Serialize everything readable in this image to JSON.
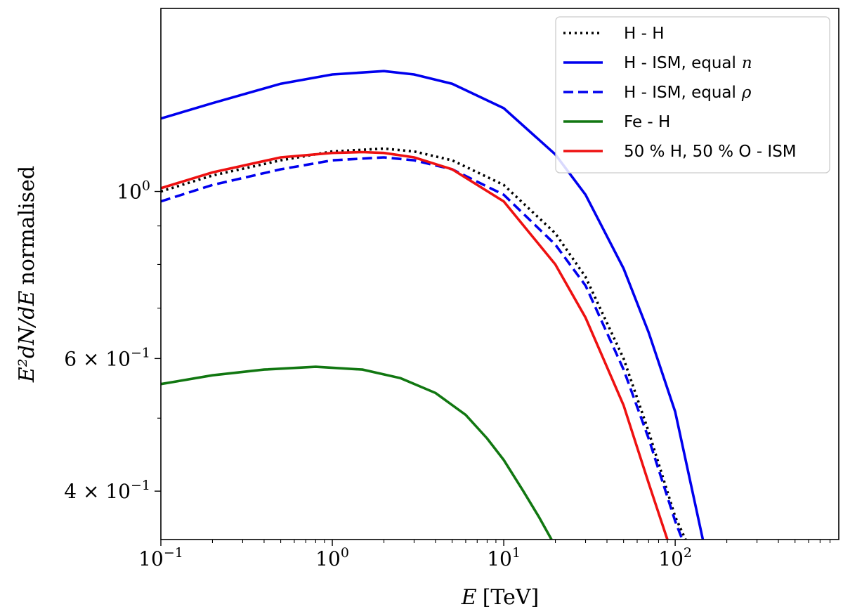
{
  "chart_data": {
    "type": "line",
    "xscale": "log",
    "yscale": "log",
    "xlim": [
      0.1,
      900
    ],
    "ylim": [
      0.345,
      1.75
    ],
    "xlabel": {
      "italic": "E",
      "rest": "[TeV]"
    },
    "ylabel": {
      "math": "E²dN/dE",
      "rest": "normalised"
    },
    "x_ticks": [
      {
        "value": 0.1,
        "base": "10",
        "exp": "−1"
      },
      {
        "value": 1,
        "base": "10",
        "exp": "0"
      },
      {
        "value": 10,
        "base": "10",
        "exp": "1"
      },
      {
        "value": 100,
        "base": "10",
        "exp": "2"
      }
    ],
    "y_ticks": [
      {
        "value": 1.0,
        "base": "10",
        "exp": "0",
        "prefix": ""
      },
      {
        "value": 0.6,
        "base": "10",
        "exp": "−1",
        "prefix": "6 × "
      },
      {
        "value": 0.4,
        "base": "10",
        "exp": "−1",
        "prefix": "4 × "
      }
    ],
    "series": [
      {
        "name": "H - H",
        "color": "#000000",
        "dash": "dotted",
        "x": [
          0.1,
          0.2,
          0.5,
          1,
          2,
          3,
          5,
          10,
          20,
          30,
          50,
          70,
          100,
          115
        ],
        "y": [
          1.0,
          1.05,
          1.1,
          1.13,
          1.14,
          1.13,
          1.1,
          1.02,
          0.88,
          0.77,
          0.6,
          0.48,
          0.37,
          0.345
        ]
      },
      {
        "name": "H - ISM, equal n",
        "color": "#0000ee",
        "dash": "solid",
        "x": [
          0.1,
          0.2,
          0.5,
          1,
          2,
          3,
          5,
          10,
          20,
          30,
          50,
          70,
          100,
          145
        ],
        "y": [
          1.25,
          1.31,
          1.39,
          1.43,
          1.445,
          1.43,
          1.39,
          1.29,
          1.12,
          0.99,
          0.79,
          0.65,
          0.51,
          0.345
        ]
      },
      {
        "name": "H - ISM, equal ρ",
        "color": "#0000ee",
        "dash": "dashed",
        "x": [
          0.1,
          0.2,
          0.5,
          1,
          2,
          3,
          5,
          10,
          20,
          30,
          50,
          70,
          100,
          110
        ],
        "y": [
          0.97,
          1.02,
          1.07,
          1.1,
          1.11,
          1.1,
          1.07,
          0.99,
          0.85,
          0.75,
          0.58,
          0.47,
          0.365,
          0.345
        ]
      },
      {
        "name": "Fe - H",
        "color": "#117711",
        "dash": "solid",
        "x": [
          0.1,
          0.2,
          0.4,
          0.8,
          1.5,
          2.5,
          4,
          6,
          8,
          10,
          13,
          16,
          19
        ],
        "y": [
          0.555,
          0.57,
          0.58,
          0.585,
          0.58,
          0.565,
          0.54,
          0.505,
          0.47,
          0.44,
          0.4,
          0.37,
          0.345
        ]
      },
      {
        "name": "50 % H, 50 % O - ISM",
        "color": "#ee1111",
        "dash": "solid",
        "x": [
          0.1,
          0.2,
          0.5,
          1,
          1.5,
          2,
          3,
          5,
          10,
          20,
          30,
          50,
          70,
          90
        ],
        "y": [
          1.01,
          1.06,
          1.11,
          1.125,
          1.128,
          1.125,
          1.11,
          1.07,
          0.97,
          0.8,
          0.68,
          0.52,
          0.41,
          0.345
        ]
      }
    ],
    "legend": {
      "placement": "top-right",
      "entries": [
        {
          "label": "H - H"
        },
        {
          "label": "H - ISM, equal",
          "math": "n"
        },
        {
          "label": "H - ISM, equal",
          "math": "ρ"
        },
        {
          "label": "Fe - H"
        },
        {
          "label": "50 % H, 50 % O - ISM"
        }
      ]
    }
  }
}
